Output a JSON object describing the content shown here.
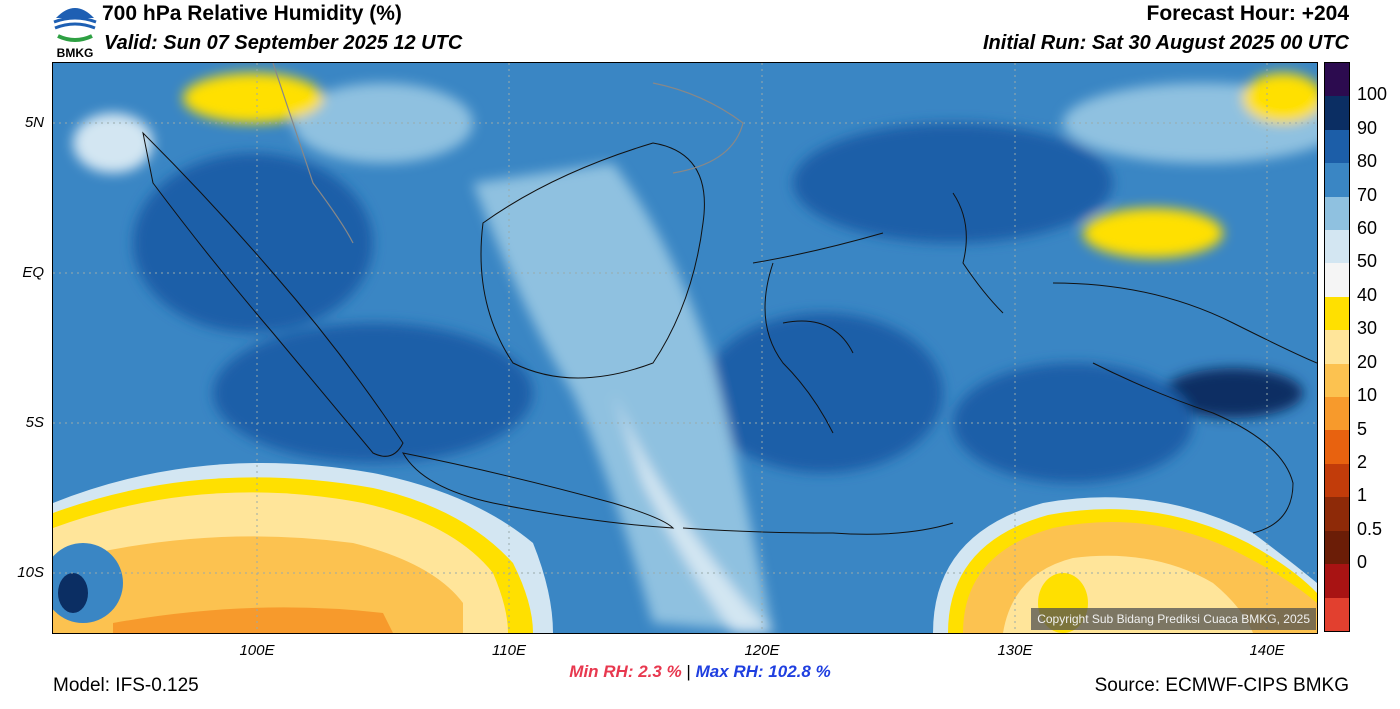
{
  "header": {
    "title": "700 hPa Relative Humidity (%)",
    "valid": "Valid: Sun 07 September 2025 12 UTC",
    "forecast_hour": "Forecast Hour: +204",
    "initial_run": "Initial Run: Sat 30 August 2025 00 UTC"
  },
  "logo_text": "BMKG",
  "map": {
    "lat_labels": [
      "5N",
      "EQ",
      "5S",
      "10S"
    ],
    "lon_labels": [
      "100E",
      "110E",
      "120E",
      "130E",
      "140E"
    ],
    "copyright": "Copyright Sub Bidang Prediksi Cuaca BMKG, 2025"
  },
  "colorbar": {
    "labels": [
      "100",
      "90",
      "80",
      "70",
      "60",
      "50",
      "40",
      "30",
      "20",
      "10",
      "5",
      "2",
      "1",
      "0.5",
      "0"
    ],
    "colors": [
      "#2c0b4f",
      "#0b2e63",
      "#1c5ea8",
      "#3a86c4",
      "#8fc1e0",
      "#d3e6f2",
      "#f5f5f5",
      "#ffe000",
      "#ffe59a",
      "#fcc250",
      "#f79a2c",
      "#e8620f",
      "#c23c0a",
      "#8e2a08",
      "#6b1d07",
      "#a81313",
      "#e2402f"
    ]
  },
  "stats": {
    "min": "Min RH:   2.3 %",
    "separator": "|",
    "max": "Max RH: 102.8 %"
  },
  "footer": {
    "model": "Model: IFS-0.125",
    "source": "Source: ECMWF-CIPS BMKG"
  }
}
